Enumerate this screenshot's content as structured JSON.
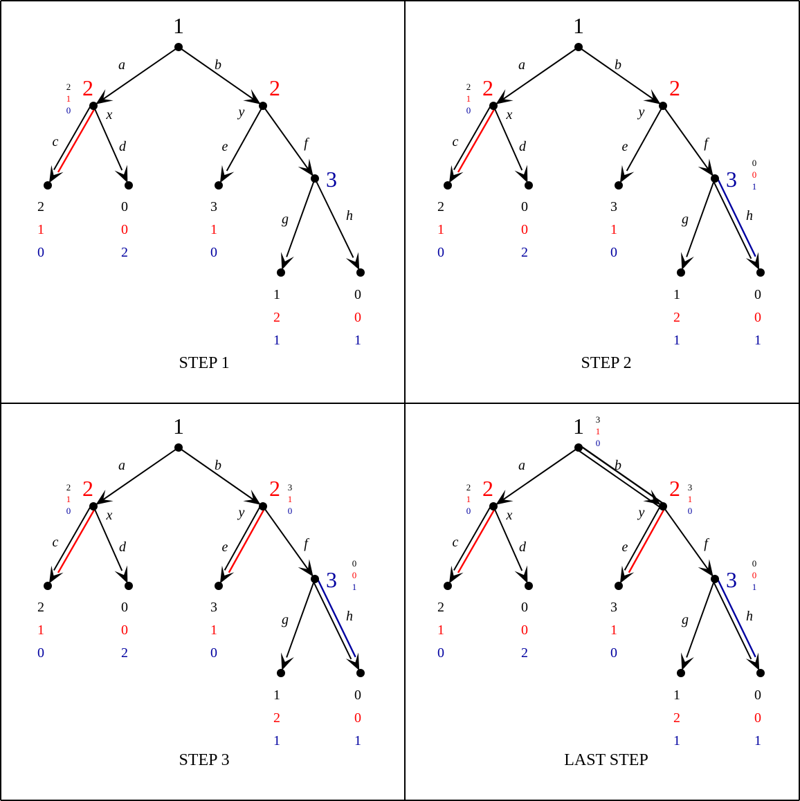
{
  "colors": {
    "player1": "#000000",
    "player2": "#ff0000",
    "player3": "#0000a0",
    "edge": "#000000",
    "background": "#ffffff"
  },
  "tree": {
    "node_player_labels": {
      "root": "1",
      "nx": "2",
      "ny": "2",
      "nf": "3"
    },
    "edge_labels": {
      "a": "a",
      "b": "b",
      "c": "c",
      "d": "d",
      "e": "e",
      "f": "f",
      "g": "g",
      "h": "h",
      "x": "x",
      "y": "y"
    },
    "leaf_payoffs": {
      "c": [
        "2",
        "1",
        "0"
      ],
      "d": [
        "0",
        "0",
        "2"
      ],
      "e": [
        "3",
        "1",
        "0"
      ],
      "g": [
        "1",
        "2",
        "1"
      ],
      "h": [
        "0",
        "0",
        "1"
      ]
    }
  },
  "panels": [
    {
      "label": "STEP 1",
      "highlighted": [
        "c"
      ],
      "backed_up": {
        "nx": [
          "2",
          "1",
          "0"
        ]
      }
    },
    {
      "label": "STEP 2",
      "highlighted": [
        "c",
        "h"
      ],
      "backed_up": {
        "nx": [
          "2",
          "1",
          "0"
        ],
        "nf": [
          "0",
          "0",
          "1"
        ]
      }
    },
    {
      "label": "STEP 3",
      "highlighted": [
        "c",
        "e",
        "h"
      ],
      "backed_up": {
        "nx": [
          "2",
          "1",
          "0"
        ],
        "ny": [
          "3",
          "1",
          "0"
        ],
        "nf": [
          "0",
          "0",
          "1"
        ]
      }
    },
    {
      "label": "LAST STEP",
      "highlighted": [
        "c",
        "b",
        "e",
        "h"
      ],
      "backed_up": {
        "nx": [
          "2",
          "1",
          "0"
        ],
        "ny": [
          "3",
          "1",
          "0"
        ],
        "nf": [
          "0",
          "0",
          "1"
        ],
        "root": [
          "3",
          "1",
          "0"
        ]
      }
    }
  ]
}
